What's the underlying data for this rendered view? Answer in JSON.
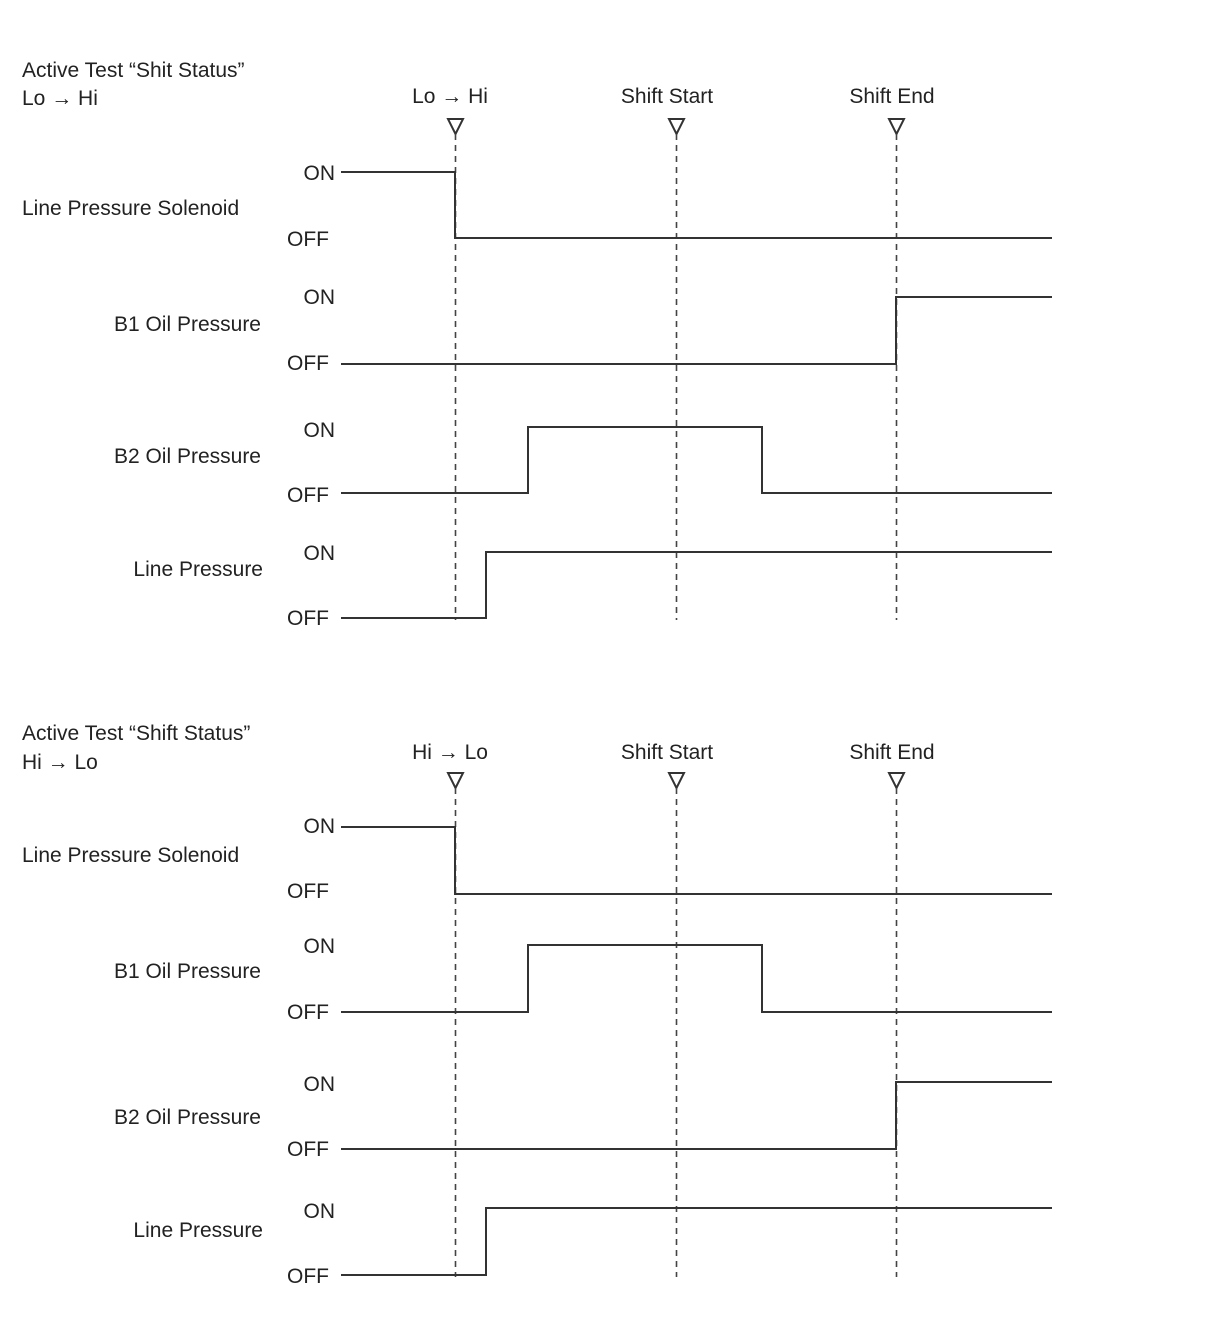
{
  "panels": [
    {
      "title_line1": "Active Test “Shit Status”",
      "title_line2": "Lo → Hi",
      "markers": [
        {
          "label": "Lo → Hi"
        },
        {
          "label": "Shift Start"
        },
        {
          "label": "Shift End"
        }
      ],
      "signals": [
        {
          "name": "Line Pressure Solenoid",
          "on_label": "ON",
          "off_label": "OFF",
          "initial": "ON",
          "transitions": [
            {
              "at": "Lo → Hi",
              "to": "OFF"
            }
          ]
        },
        {
          "name": "B1 Oil Pressure",
          "on_label": "ON",
          "off_label": "OFF",
          "initial": "OFF",
          "transitions": [
            {
              "at": "Shift End",
              "to": "ON"
            }
          ]
        },
        {
          "name": "B2 Oil Pressure",
          "on_label": "ON",
          "off_label": "OFF",
          "initial": "OFF",
          "transitions": [
            {
              "at": "between Lo → Hi and Shift Start",
              "to": "ON"
            },
            {
              "at": "between Shift Start and Shift End",
              "to": "OFF"
            }
          ]
        },
        {
          "name": "Line Pressure",
          "on_label": "ON",
          "off_label": "OFF",
          "initial": "OFF",
          "transitions": [
            {
              "at": "shortly after Lo → Hi",
              "to": "ON"
            }
          ]
        }
      ]
    },
    {
      "title_line1": "Active Test “Shift Status”",
      "title_line2": "Hi → Lo",
      "markers": [
        {
          "label": "Hi → Lo"
        },
        {
          "label": "Shift Start"
        },
        {
          "label": "Shift End"
        }
      ],
      "signals": [
        {
          "name": "Line Pressure Solenoid",
          "on_label": "ON",
          "off_label": "OFF",
          "initial": "ON",
          "transitions": [
            {
              "at": "Hi → Lo",
              "to": "OFF"
            }
          ]
        },
        {
          "name": "B1 Oil Pressure",
          "on_label": "ON",
          "off_label": "OFF",
          "initial": "OFF",
          "transitions": [
            {
              "at": "between Hi → Lo and Shift Start",
              "to": "ON"
            },
            {
              "at": "between Shift Start and Shift End",
              "to": "OFF"
            }
          ]
        },
        {
          "name": "B2 Oil Pressure",
          "on_label": "ON",
          "off_label": "OFF",
          "initial": "OFF",
          "transitions": [
            {
              "at": "Shift End",
              "to": "ON"
            }
          ]
        },
        {
          "name": "Line Pressure",
          "on_label": "ON",
          "off_label": "OFF",
          "initial": "OFF",
          "transitions": [
            {
              "at": "shortly after Hi → Lo",
              "to": "ON"
            }
          ]
        }
      ]
    }
  ]
}
